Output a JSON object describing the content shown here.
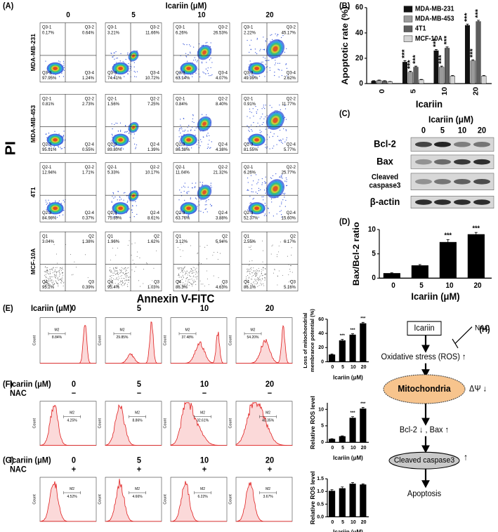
{
  "flow": {
    "label": "(A)",
    "title": "Icariin (μM)",
    "columns": [
      "0",
      "5",
      "10",
      "20"
    ],
    "y_label": "PI",
    "x_label": "Annexin V-FITC",
    "rows": [
      {
        "name": "MDA-MB-231",
        "plots": [
          [
            {
              "name": "Q3-1",
              "value": "0.17%"
            },
            {
              "name": "Q3-2",
              "value": "0.64%"
            },
            {
              "name": "Q3-3",
              "value": "97.95%"
            },
            {
              "name": "Q3-4",
              "value": "1.24%"
            }
          ],
          [
            {
              "name": "Q3-1",
              "value": "3.21%"
            },
            {
              "name": "Q3-2",
              "value": "11.66%"
            },
            {
              "name": "Q3-3",
              "value": "74.41%"
            },
            {
              "name": "Q3-4",
              "value": "10.72%"
            }
          ],
          [
            {
              "name": "Q3-1",
              "value": "6.26%"
            },
            {
              "name": "Q3-2",
              "value": "26.53%"
            },
            {
              "name": "Q3-3",
              "value": "63.14%"
            },
            {
              "name": "Q3-4",
              "value": "4.07%"
            }
          ],
          [
            {
              "name": "Q3-1",
              "value": "2.22%"
            },
            {
              "name": "Q3-2",
              "value": "45.17%"
            },
            {
              "name": "Q3-3",
              "value": "49.99%"
            },
            {
              "name": "Q3-4",
              "value": "2.62%"
            }
          ]
        ]
      },
      {
        "name": "MDA-MB-453",
        "plots": [
          [
            {
              "name": "Q2-1",
              "value": "0.81%"
            },
            {
              "name": "Q2-2",
              "value": "2.73%"
            },
            {
              "name": "Q2-3",
              "value": "95.91%"
            },
            {
              "name": "Q2-4",
              "value": "0.55%"
            }
          ],
          [
            {
              "name": "Q2-1",
              "value": "1.56%"
            },
            {
              "name": "Q2-2",
              "value": "7.25%"
            },
            {
              "name": "Q2-3",
              "value": "89.80%"
            },
            {
              "name": "Q2-4",
              "value": "1.39%"
            }
          ],
          [
            {
              "name": "Q2-1",
              "value": "0.84%"
            },
            {
              "name": "Q2-2",
              "value": "8.40%"
            },
            {
              "name": "Q2-3",
              "value": "86.38%"
            },
            {
              "name": "Q2-4",
              "value": "4.38%"
            }
          ],
          [
            {
              "name": "Q2-1",
              "value": "0.91%"
            },
            {
              "name": "Q2-2",
              "value": "11.77%"
            },
            {
              "name": "Q2-3",
              "value": "81.55%"
            },
            {
              "name": "Q2-4",
              "value": "5.77%"
            }
          ]
        ]
      },
      {
        "name": "4T1",
        "plots": [
          [
            {
              "name": "Q2-1",
              "value": "12.94%"
            },
            {
              "name": "Q2-2",
              "value": "1.71%"
            },
            {
              "name": "Q2-3",
              "value": "84.98%"
            },
            {
              "name": "Q2-4",
              "value": "0.37%"
            }
          ],
          [
            {
              "name": "Q2-1",
              "value": "5.33%"
            },
            {
              "name": "Q2-2",
              "value": "10.17%"
            },
            {
              "name": "Q2-3",
              "value": "75.89%"
            },
            {
              "name": "Q2-4",
              "value": "8.61%"
            }
          ],
          [
            {
              "name": "Q2-1",
              "value": "11.04%"
            },
            {
              "name": "Q2-2",
              "value": "21.32%"
            },
            {
              "name": "Q2-3",
              "value": "63.76%"
            },
            {
              "name": "Q2-4",
              "value": "3.88%"
            }
          ],
          [
            {
              "name": "Q2-1",
              "value": "6.26%"
            },
            {
              "name": "Q2-2",
              "value": "25.77%"
            },
            {
              "name": "Q2-3",
              "value": "52.37%"
            },
            {
              "name": "Q2-4",
              "value": "15.60%"
            }
          ]
        ]
      },
      {
        "name": "MCF-10A",
        "plots": [
          [
            {
              "name": "Q1",
              "value": "3.04%"
            },
            {
              "name": "Q2",
              "value": "1.38%"
            },
            {
              "name": "Q4",
              "value": "95.2%"
            },
            {
              "name": "Q3",
              "value": "0.39%"
            }
          ],
          [
            {
              "name": "Q1",
              "value": "1.96%"
            },
            {
              "name": "Q2",
              "value": "1.62%"
            },
            {
              "name": "Q4",
              "value": "95.4%"
            },
            {
              "name": "Q3",
              "value": "1.03%"
            }
          ],
          [
            {
              "name": "Q1",
              "value": "3.12%"
            },
            {
              "name": "Q2",
              "value": "5.94%"
            },
            {
              "name": "Q4",
              "value": "86.3%"
            },
            {
              "name": "Q3",
              "value": "4.63%"
            }
          ],
          [
            {
              "name": "Q1",
              "value": "2.55%"
            },
            {
              "name": "Q2",
              "value": "6.17%"
            },
            {
              "name": "Q4",
              "value": "86.1%"
            },
            {
              "name": "Q3",
              "value": "5.16%"
            }
          ]
        ]
      }
    ]
  },
  "chart_data": [
    {
      "type": "bar",
      "label": "(B)",
      "y_label": "Apoptotic rate (%)",
      "x_label": "Icariin",
      "categories": [
        "0",
        "5",
        "10",
        "20"
      ],
      "ylim": [
        0,
        60
      ],
      "yticks": [
        0,
        20,
        40,
        60
      ],
      "legend": "top-right",
      "series": [
        {
          "name": "MDA-MB-231",
          "color": "#111111",
          "values": [
            2,
            17,
            26,
            46
          ],
          "errors": [
            0.3,
            1.2,
            1,
            1
          ],
          "sig": [
            null,
            "***",
            "***",
            "***"
          ]
        },
        {
          "name": "MDA-MB-453",
          "color": "#9a9a9a",
          "values": [
            2.5,
            9,
            13,
            18
          ],
          "errors": [
            0.3,
            0.8,
            0.8,
            0.8
          ],
          "sig": [
            null,
            "***",
            "***",
            "***"
          ]
        },
        {
          "name": "4T1",
          "color": "#5e5e5e",
          "values": [
            2,
            13,
            28,
            49
          ],
          "errors": [
            0.3,
            0.8,
            1,
            1
          ],
          "sig": [
            null,
            "***",
            "***",
            "***"
          ]
        },
        {
          "name": "MCF-10A",
          "color": "#d4d4d4",
          "values": [
            1.5,
            3,
            6,
            6
          ],
          "errors": [
            0.2,
            0.3,
            0.4,
            0.4
          ]
        }
      ]
    },
    {
      "type": "bar",
      "label": "(D)",
      "y_label": "Bax/Bcl-2 ratio",
      "x_label": "Icariin (μM)",
      "categories": [
        "0",
        "5",
        "10",
        "20"
      ],
      "values": [
        1,
        2.6,
        7.4,
        9
      ],
      "errors": [
        0.1,
        0.2,
        0.5,
        0.4
      ],
      "sig": [
        null,
        null,
        "***",
        "***"
      ],
      "color": "#000000",
      "ylim": [
        0,
        10
      ],
      "yticks": [
        0,
        5,
        10
      ]
    },
    {
      "type": "bar",
      "y_label": [
        "Loss of mitochondrial",
        "membrance potential (%)"
      ],
      "x_label": "Icariin (μM)",
      "categories": [
        "0",
        "5",
        "10",
        "20"
      ],
      "values": [
        10,
        30,
        38,
        54
      ],
      "errors": [
        1,
        1.5,
        1.5,
        1.5
      ],
      "sig": [
        null,
        "***",
        "***",
        "***"
      ],
      "color": "#000000",
      "ylim": [
        0,
        60
      ],
      "yticks": [
        0,
        20,
        40,
        60
      ]
    },
    {
      "type": "bar",
      "y_label": "Relative ROS level",
      "x_label": "Icariin (μM)",
      "categories": [
        "0",
        "5",
        "10",
        "20"
      ],
      "values": [
        1,
        1.8,
        7.4,
        10.2
      ],
      "errors": [
        0.1,
        0.15,
        0.4,
        0.4
      ],
      "sig": [
        null,
        null,
        "***",
        "***"
      ],
      "color": "#000000",
      "ylim": [
        0,
        12
      ],
      "yticks": [
        0,
        5,
        10
      ]
    },
    {
      "type": "bar",
      "y_label": "Relative ROS level",
      "x_label": "Icariin (μM)",
      "categories": [
        "0",
        "5",
        "10",
        "20"
      ],
      "values": [
        1.02,
        1.12,
        1.3,
        1.27
      ],
      "errors": [
        0.05,
        0.06,
        0.05,
        0.03
      ],
      "color": "#000000",
      "ylim": [
        0,
        1.5
      ],
      "yticks": [
        {
          "value": 0,
          "label": "0.0"
        },
        {
          "value": 0.5,
          "label": "0.5"
        },
        {
          "value": 1,
          "label": "1.0"
        },
        {
          "value": 1.5,
          "label": "1.5"
        }
      ]
    }
  ],
  "blot": {
    "label": "(C)",
    "title": "Icariin (μM)",
    "lanes": [
      "0",
      "5",
      "10",
      "20"
    ],
    "proteins": [
      [
        "Bcl-2"
      ],
      [
        "Bax"
      ],
      [
        "Cleaved",
        "caspase3"
      ],
      [
        "β-actin"
      ]
    ]
  },
  "histograms": {
    "y_label": "Count",
    "gate": "M2",
    "rows": [
      {
        "label": "(E)",
        "treatment": "Icariin (μM)",
        "doses": [
          "0",
          "5",
          "10",
          "20"
        ],
        "gates": [
          "8.84%",
          "29.85%",
          "37.48%",
          "54.20%"
        ]
      },
      {
        "label": "(F)",
        "treatment": "Icariin (μM)",
        "doses": [
          "0",
          "5",
          "10",
          "20"
        ],
        "cotreatment": "NAC",
        "signs": [
          "−",
          "−",
          "−",
          "−"
        ],
        "gates": [
          "4.25%",
          "8.86%",
          "32.61%",
          "40.35%"
        ]
      },
      {
        "label": "(G)",
        "treatment": "Icariin (μM)",
        "doses": [
          "0",
          "5",
          "10",
          "20"
        ],
        "cotreatment": "NAC",
        "signs": [
          "+",
          "+",
          "+",
          "+"
        ],
        "gates": [
          "4.52%",
          "4.66%",
          "6.22%",
          "3.67%"
        ]
      }
    ]
  },
  "diagram": {
    "label": "(H)",
    "start": "Icariin",
    "inhibitor": "NAC",
    "stress": "Oxidative stress (ROS) ↑",
    "organelle": "Mitochondria",
    "potential": "ΔΨ ↓",
    "proteins": "Bcl-2 ↓ ,  Bax ↑",
    "caspase": "Cleaved caspase3",
    "caspase_change": "↑",
    "end": "Apoptosis"
  }
}
